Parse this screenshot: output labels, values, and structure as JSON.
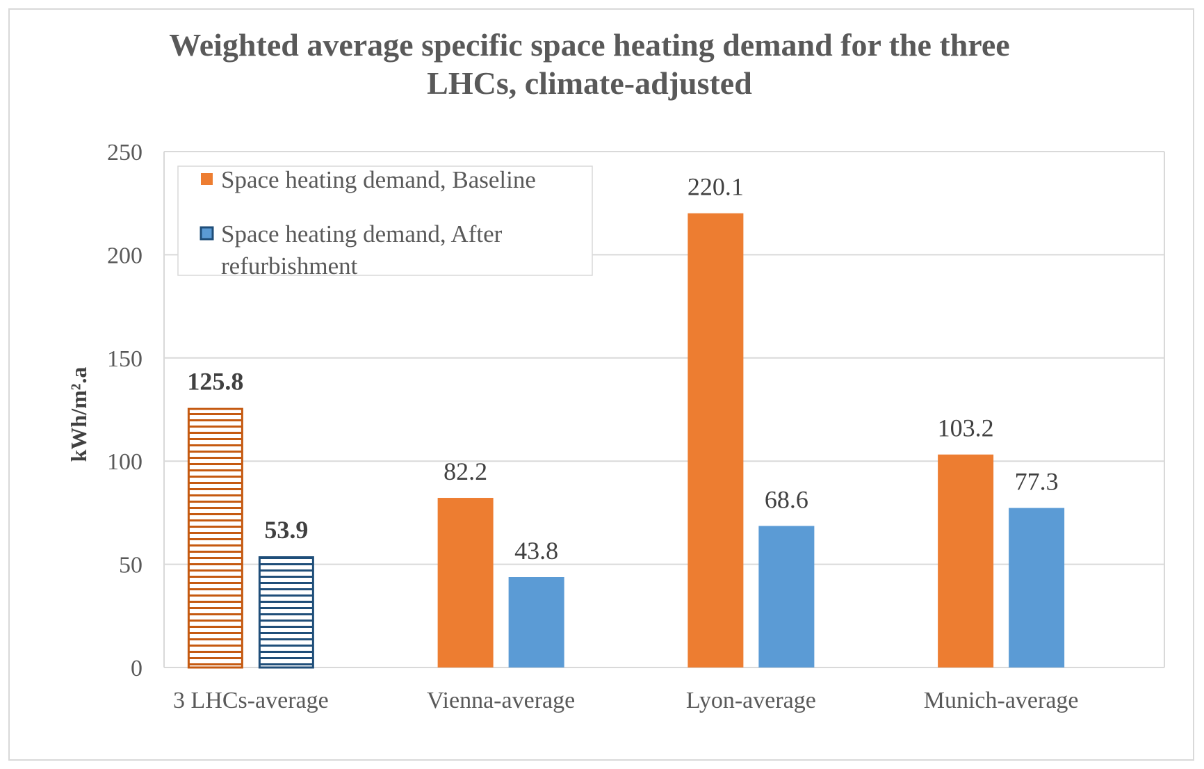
{
  "chart_data": {
    "type": "bar",
    "title": [
      "Weighted average specific space heating demand for the three",
      "LHCs, climate-adjusted"
    ],
    "ylabel": "kWh/m².a",
    "xlabel": "",
    "ylim": [
      0,
      250
    ],
    "yticks": [
      0,
      50,
      100,
      150,
      200,
      250
    ],
    "grid": true,
    "legend_position": "top-left",
    "categories": [
      "3 LHCs-average",
      "Vienna-average",
      "Lyon-average",
      "Munich-average"
    ],
    "series": [
      {
        "name": "Space heating demand,  Baseline",
        "legend_lines": [
          "Space heating demand,  Baseline"
        ],
        "color": "#ED7D31",
        "values": [
          125.8,
          82.2,
          220.1,
          103.2
        ],
        "labels": [
          "125.8",
          "82.2",
          "220.1",
          "103.2"
        ]
      },
      {
        "name": "Space heating demand,  After refurbishment",
        "legend_lines": [
          "Space heating demand,  After",
          "refurbishment"
        ],
        "color": "#5B9BD5",
        "values": [
          53.9,
          43.8,
          68.6,
          77.3
        ],
        "labels": [
          "53.9",
          "43.8",
          "68.6",
          "77.3"
        ]
      }
    ],
    "emphasized_category_index": 0,
    "emphasis_colors": [
      "#C55A11",
      "#1F4E79"
    ]
  }
}
